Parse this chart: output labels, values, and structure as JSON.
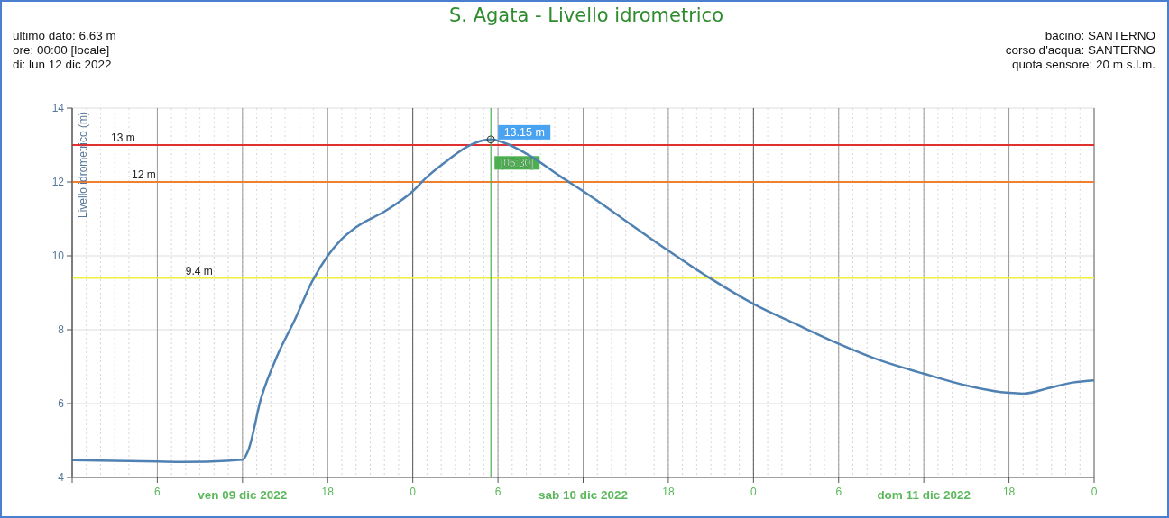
{
  "chart_data": {
    "type": "line",
    "title": "S. Agata - Livello idrometrico",
    "ylabel": "Livello idrometrico (m)",
    "annotations": [
      "ultimo dato: 6.63 m",
      "ore: 00:00 [locale]",
      "di: lun 12 dic 2022",
      "bacino: SANTERNO",
      "corso d'acqua: SANTERNO",
      "quota sensore: 20 m s.l.m.",
      {
        "text": "13.15 m",
        "x": "2022-12-10T05:30",
        "y": 13.15
      }
    ],
    "x": [
      "2022-12-09T00:00",
      "2022-12-09T06:00",
      "2022-12-09T07:48",
      "2022-12-09T12:00",
      "2022-12-09T12:24",
      "2022-12-09T13:18",
      "2022-12-09T14:30",
      "2022-12-09T15:42",
      "2022-12-09T16:54",
      "2022-12-09T18:00",
      "2022-12-09T18:54",
      "2022-12-09T20:06",
      "2022-12-09T22:00",
      "2022-12-09T23:00",
      "2022-12-10T00:00",
      "2022-12-10T00:54",
      "2022-12-10T02:24",
      "2022-12-10T03:48",
      "2022-12-10T05:30",
      "2022-12-10T06:18",
      "2022-12-10T08:18",
      "2022-12-10T10:24",
      "2022-12-10T12:00",
      "2022-12-10T18:00",
      "2022-12-10T21:00",
      "2022-12-11T00:00",
      "2022-12-11T03:00",
      "2022-12-11T06:00",
      "2022-12-11T09:00",
      "2022-12-11T12:00",
      "2022-12-11T15:00",
      "2022-12-11T18:00",
      "2022-12-11T19:00",
      "2022-12-11T21:00",
      "2022-12-11T22:30",
      "2022-12-12T00:00"
    ],
    "series": [
      {
        "color": "#4f81b3",
        "values": [
          4.47,
          4.43,
          4.42,
          4.48,
          4.73,
          6.13,
          7.34,
          8.28,
          9.3,
          10.0,
          10.42,
          10.8,
          11.2,
          11.45,
          11.75,
          12.1,
          12.57,
          12.95,
          13.15,
          13.08,
          12.7,
          12.15,
          11.75,
          10.14,
          9.38,
          8.7,
          8.15,
          7.62,
          7.16,
          6.81,
          6.49,
          6.29,
          6.27,
          6.44,
          6.57,
          6.63
        ]
      }
    ],
    "xlim": [
      "2022-12-09T00:00",
      "2022-12-12T00:00"
    ],
    "xticks": [
      {
        "value": "2022-12-09T00:00",
        "label": null
      },
      {
        "value": "2022-12-09T06:00",
        "label": "6"
      },
      {
        "value": "2022-12-09T12:00",
        "label": "ven 09 dic 2022"
      },
      {
        "value": "2022-12-09T18:00",
        "label": "18"
      },
      {
        "value": "2022-12-10T00:00",
        "label": "0"
      },
      {
        "value": "2022-12-10T06:00",
        "label": "6"
      },
      {
        "value": "2022-12-10T12:00",
        "label": "sab 10 dic 2022"
      },
      {
        "value": "2022-12-10T18:00",
        "label": "18"
      },
      {
        "value": "2022-12-11T00:00",
        "label": "0"
      },
      {
        "value": "2022-12-11T06:00",
        "label": "6"
      },
      {
        "value": "2022-12-11T12:00",
        "label": "dom 11 dic 2022"
      },
      {
        "value": "2022-12-11T18:00",
        "label": "18"
      },
      {
        "value": "2022-12-12T00:00",
        "label": "0"
      }
    ],
    "ylim": [
      4,
      14
    ],
    "yticks": [
      4,
      6,
      8,
      10,
      12,
      14
    ],
    "grid": true,
    "marker": "none",
    "line_style": "solid",
    "ref_lines": [
      {
        "axis": "y",
        "value": 13,
        "label": "13 m",
        "color": "#e03030"
      },
      {
        "axis": "y",
        "value": 12,
        "label": "12 m",
        "color": "#f08030"
      },
      {
        "axis": "y",
        "value": 9.4,
        "label": "9.4 m",
        "color": "#f0f040"
      },
      {
        "axis": "x",
        "value": "2022-12-10T05:30",
        "label": "[05:30]",
        "color": "#4caf50"
      }
    ]
  }
}
